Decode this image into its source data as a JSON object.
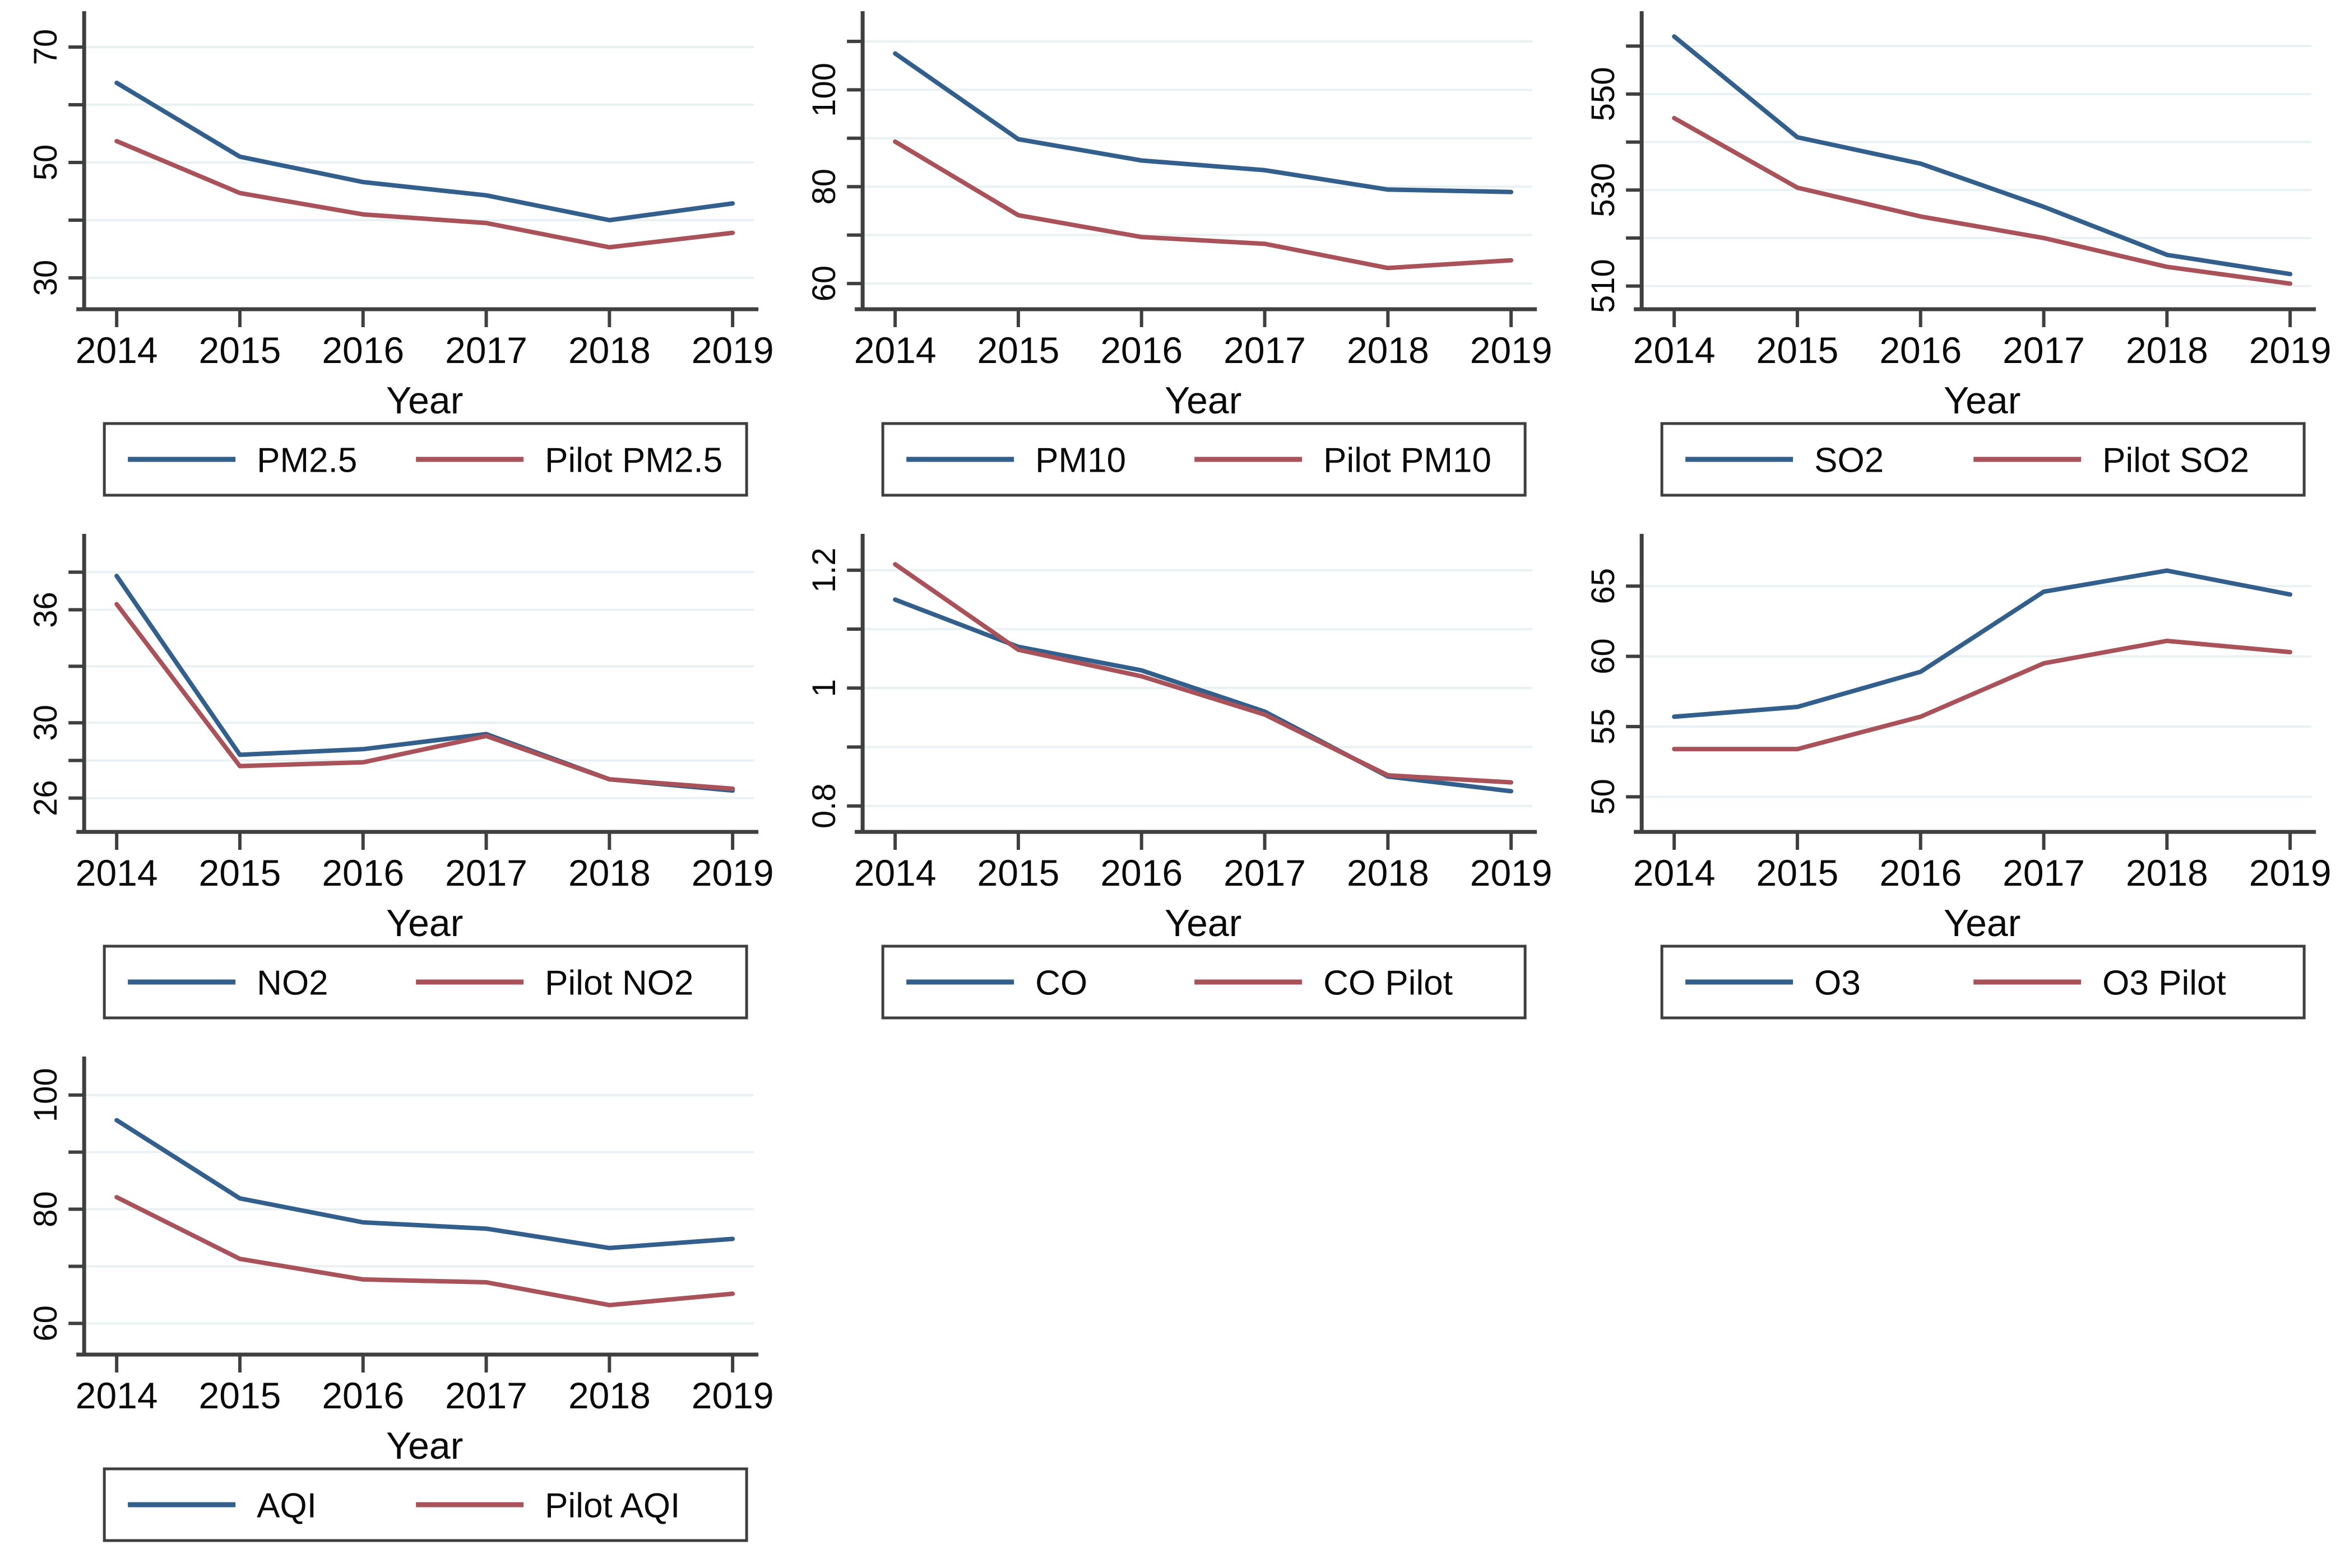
{
  "figure": {
    "background": "#ffffff",
    "grid_color": "#e9f1f3",
    "axis_color": "#3f3f3f",
    "text_color": "#0a0a0a",
    "series_colors": {
      "main": "#325f8b",
      "pilot": "#a9525a"
    },
    "years": [
      2014,
      2015,
      2016,
      2017,
      2018,
      2019
    ],
    "xlabel": "Year",
    "legend_position": "bottom",
    "grid": true
  },
  "chart_data": [
    {
      "id": "pm25",
      "type": "line",
      "xlabel": "Year",
      "ylim": [
        26.5,
        73.5
      ],
      "yticks": [
        {
          "value": 70,
          "label": "70"
        },
        {
          "value": 60,
          "label": ""
        },
        {
          "value": 50,
          "label": "50"
        },
        {
          "value": 40,
          "label": ""
        },
        {
          "value": 30,
          "label": "30"
        }
      ],
      "series": [
        {
          "name": "PM2.5",
          "role": "main",
          "values": [
            63.8,
            51.0,
            46.6,
            44.3,
            40.0,
            42.9
          ]
        },
        {
          "name": "Pilot PM2.5",
          "role": "pilot",
          "values": [
            53.7,
            44.7,
            41.0,
            39.5,
            35.3,
            37.8
          ]
        }
      ]
    },
    {
      "id": "pm10",
      "type": "line",
      "xlabel": "Year",
      "ylim": [
        57,
        113
      ],
      "yticks": [
        {
          "value": 110,
          "label": ""
        },
        {
          "value": 100,
          "label": "100"
        },
        {
          "value": 90,
          "label": ""
        },
        {
          "value": 80,
          "label": "80"
        },
        {
          "value": 70,
          "label": ""
        },
        {
          "value": 60,
          "label": "60"
        }
      ],
      "series": [
        {
          "name": "PM10",
          "role": "main",
          "values": [
            107.5,
            89.8,
            85.4,
            83.4,
            79.4,
            78.9
          ]
        },
        {
          "name": "Pilot PM10",
          "role": "pilot",
          "values": [
            89.3,
            74.1,
            69.6,
            68.2,
            63.2,
            64.8
          ]
        }
      ]
    },
    {
      "id": "so2",
      "type": "line",
      "xlabel": "Year",
      "ylim": [
        507.5,
        564
      ],
      "yticks": [
        {
          "value": 560,
          "label": ""
        },
        {
          "value": 550,
          "label": "550"
        },
        {
          "value": 540,
          "label": ""
        },
        {
          "value": 530,
          "label": "530"
        },
        {
          "value": 520,
          "label": ""
        },
        {
          "value": 510,
          "label": "510"
        }
      ],
      "series": [
        {
          "name": "SO2",
          "role": "main",
          "values": [
            562,
            541,
            535.5,
            526.5,
            516.5,
            512.5
          ]
        },
        {
          "name": "Pilot SO2",
          "role": "pilot",
          "values": [
            545,
            530.5,
            524.5,
            520,
            514,
            510.5
          ]
        }
      ]
    },
    {
      "id": "no2",
      "type": "line",
      "xlabel": "Year",
      "ylim": [
        24.8,
        39.2
      ],
      "yticks": [
        {
          "value": 38,
          "label": ""
        },
        {
          "value": 36,
          "label": "36"
        },
        {
          "value": 33,
          "label": ""
        },
        {
          "value": 30,
          "label": "30"
        },
        {
          "value": 28,
          "label": ""
        },
        {
          "value": 26,
          "label": "26"
        }
      ],
      "series": [
        {
          "name": "NO2",
          "role": "main",
          "values": [
            37.8,
            28.3,
            28.6,
            29.4,
            27.0,
            26.4
          ]
        },
        {
          "name": "Pilot NO2",
          "role": "pilot",
          "values": [
            36.3,
            27.7,
            27.9,
            29.3,
            27.0,
            26.5
          ]
        }
      ]
    },
    {
      "id": "co",
      "type": "line",
      "xlabel": "Year",
      "ylim": [
        0.775,
        1.235
      ],
      "yticks": [
        {
          "value": 1.2,
          "label": "1.2"
        },
        {
          "value": 1.1,
          "label": ""
        },
        {
          "value": 1.0,
          "label": "1"
        },
        {
          "value": 0.9,
          "label": ""
        },
        {
          "value": 0.8,
          "label": "0.8"
        }
      ],
      "series": [
        {
          "name": "CO",
          "role": "main",
          "values": [
            1.15,
            1.07,
            1.03,
            0.96,
            0.85,
            0.825
          ]
        },
        {
          "name": "CO Pilot",
          "role": "pilot",
          "values": [
            1.21,
            1.065,
            1.02,
            0.955,
            0.852,
            0.84
          ]
        }
      ]
    },
    {
      "id": "o3",
      "type": "line",
      "xlabel": "Year",
      "ylim": [
        48.3,
        67.6
      ],
      "yticks": [
        {
          "value": 65,
          "label": "65"
        },
        {
          "value": 60,
          "label": "60"
        },
        {
          "value": 55,
          "label": "55"
        },
        {
          "value": 50,
          "label": "50"
        }
      ],
      "series": [
        {
          "name": "O3",
          "role": "main",
          "values": [
            55.7,
            56.4,
            58.9,
            64.6,
            66.1,
            64.4
          ]
        },
        {
          "name": "O3 Pilot",
          "role": "pilot",
          "values": [
            53.4,
            53.4,
            55.7,
            59.5,
            61.1,
            60.3
          ]
        }
      ]
    },
    {
      "id": "aqi",
      "type": "line",
      "xlabel": "Year",
      "ylim": [
        56.5,
        104
      ],
      "yticks": [
        {
          "value": 100,
          "label": "100"
        },
        {
          "value": 90,
          "label": ""
        },
        {
          "value": 80,
          "label": "80"
        },
        {
          "value": 70,
          "label": ""
        },
        {
          "value": 60,
          "label": "60"
        }
      ],
      "series": [
        {
          "name": "AQI",
          "role": "main",
          "values": [
            95.6,
            81.9,
            77.7,
            76.6,
            73.2,
            74.8
          ]
        },
        {
          "name": "Pilot AQI",
          "role": "pilot",
          "values": [
            82.1,
            71.3,
            67.7,
            67.2,
            63.2,
            65.2
          ]
        }
      ]
    }
  ]
}
